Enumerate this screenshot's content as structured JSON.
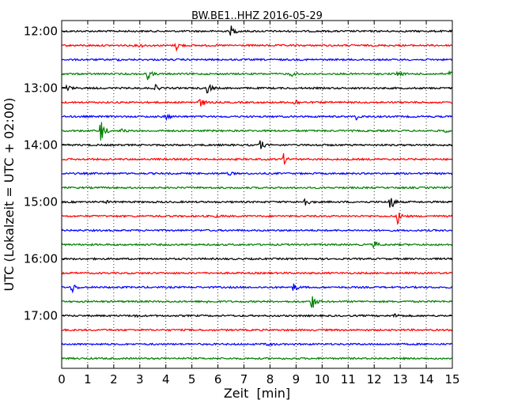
{
  "chart_data": {
    "type": "line",
    "plot_kind": "dayplot",
    "title": "BW.BE1..HHZ 2016-05-29",
    "xlabel": "Zeit  [min]",
    "ylabel": "UTC (Lokalzeit = UTC + 02:00)",
    "xlim": [
      0,
      15
    ],
    "x_ticks": [
      "0",
      "1",
      "2",
      "3",
      "4",
      "5",
      "6",
      "7",
      "8",
      "9",
      "10",
      "11",
      "12",
      "13",
      "14",
      "15"
    ],
    "y_ticks": [
      "12:00",
      "13:00",
      "14:00",
      "15:00",
      "16:00",
      "17:00"
    ],
    "grid": "vertical dotted",
    "trace_interval_minutes": 15,
    "colors": [
      "#000000",
      "#ff0000",
      "#0000ff",
      "#008000"
    ],
    "traces": [
      {
        "start": "12:00",
        "events": [
          [
            6.5,
            1.0
          ]
        ]
      },
      {
        "start": "12:15",
        "events": [
          [
            3.0,
            0.35
          ],
          [
            4.4,
            0.9
          ]
        ]
      },
      {
        "start": "12:30",
        "events": [
          [
            2.1,
            0.15
          ]
        ]
      },
      {
        "start": "12:45",
        "events": [
          [
            3.3,
            1.0
          ],
          [
            8.8,
            0.5
          ],
          [
            12.9,
            0.5
          ],
          [
            14.9,
            0.7
          ]
        ]
      },
      {
        "start": "13:00",
        "events": [
          [
            0.2,
            0.6
          ],
          [
            3.6,
            0.55
          ],
          [
            5.6,
            1.2
          ]
        ]
      },
      {
        "start": "13:15",
        "events": [
          [
            5.3,
            1.1
          ],
          [
            8.9,
            1.0
          ]
        ]
      },
      {
        "start": "13:30",
        "events": [
          [
            4.0,
            0.6
          ],
          [
            11.3,
            0.5
          ]
        ]
      },
      {
        "start": "13:45",
        "events": [
          [
            1.5,
            2.5
          ],
          [
            2.3,
            0.3
          ],
          [
            14.7,
            0.3
          ]
        ]
      },
      {
        "start": "14:00",
        "events": [
          [
            7.6,
            1.2
          ],
          [
            9.8,
            0.2
          ]
        ]
      },
      {
        "start": "14:15",
        "events": [
          [
            8.5,
            1.1
          ]
        ]
      },
      {
        "start": "14:30",
        "events": [
          [
            6.4,
            0.35
          ]
        ]
      },
      {
        "start": "14:45",
        "events": []
      },
      {
        "start": "15:00",
        "events": [
          [
            1.7,
            0.2
          ],
          [
            9.3,
            1.1
          ],
          [
            12.6,
            2.0
          ]
        ]
      },
      {
        "start": "15:15",
        "events": [
          [
            5.9,
            0.2
          ],
          [
            12.9,
            1.3
          ]
        ]
      },
      {
        "start": "15:30",
        "events": []
      },
      {
        "start": "15:45",
        "events": [
          [
            12.0,
            0.8
          ]
        ]
      },
      {
        "start": "16:00",
        "events": []
      },
      {
        "start": "16:15",
        "events": []
      },
      {
        "start": "16:30",
        "events": [
          [
            0.4,
            1.0
          ],
          [
            8.9,
            0.8
          ]
        ]
      },
      {
        "start": "16:45",
        "events": [
          [
            9.6,
            1.8
          ],
          [
            5.6,
            0.2
          ]
        ]
      },
      {
        "start": "17:00",
        "events": [
          [
            12.8,
            0.5
          ],
          [
            2.8,
            0.2
          ]
        ]
      },
      {
        "start": "17:15",
        "events": []
      },
      {
        "start": "17:30",
        "events": [
          [
            7.9,
            0.4
          ]
        ]
      },
      {
        "start": "17:45",
        "events": []
      }
    ]
  }
}
